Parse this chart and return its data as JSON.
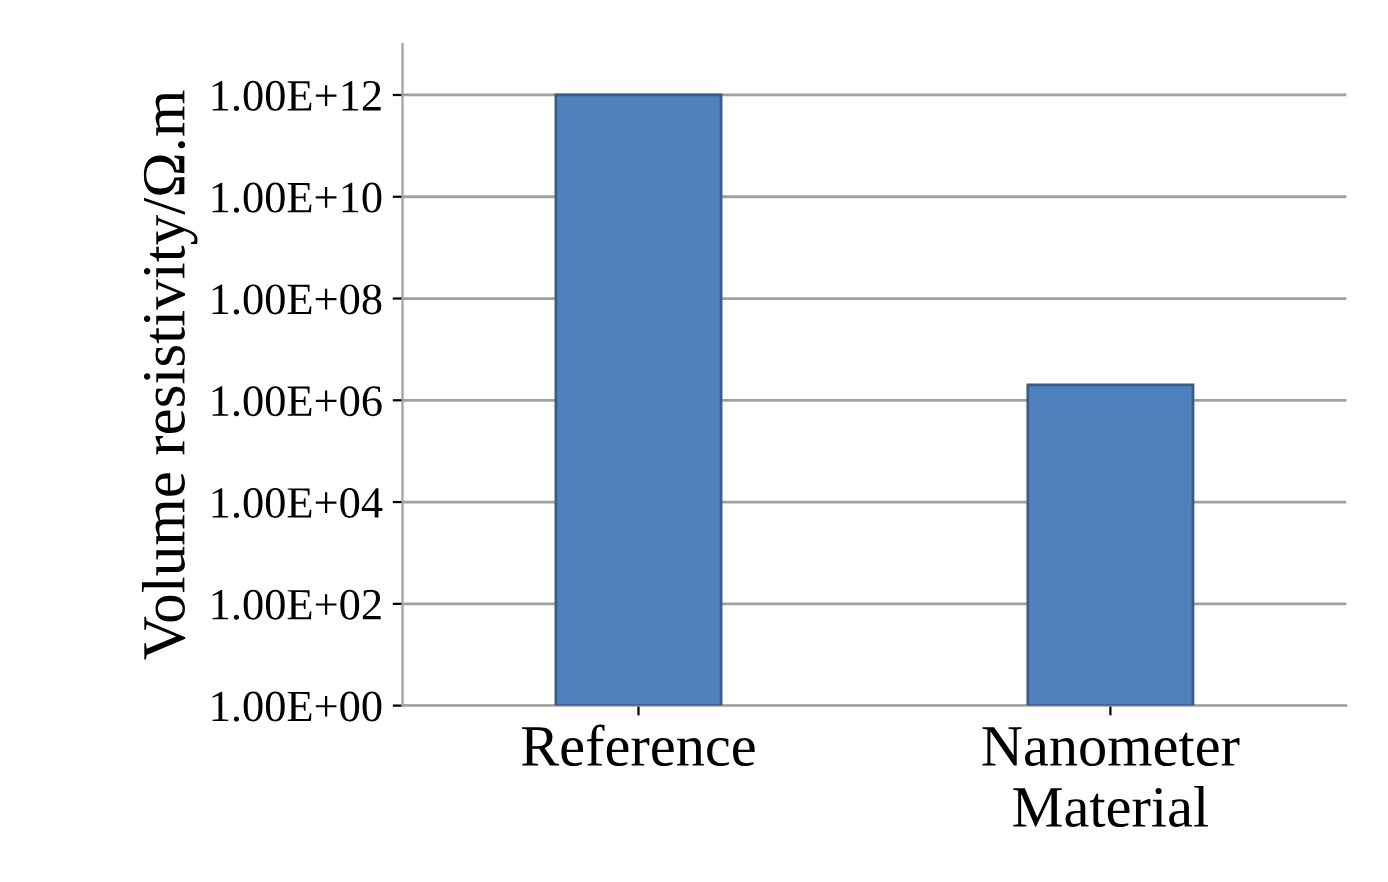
{
  "chart_data": {
    "type": "bar",
    "ylabel": "Volume resistivity/Ω.m",
    "categories": [
      "Reference",
      "Nanometer\nMaterial"
    ],
    "values": [
      1000000000000.0,
      2000000.0
    ],
    "color": "#4f81bd",
    "log": true,
    "ylim": [
      1,
      10000000000000.0
    ],
    "yticks": [
      {
        "value": 1,
        "label": "1.00E+00"
      },
      {
        "value": 100,
        "label": "1.00E+02"
      },
      {
        "value": 10000,
        "label": "1.00E+04"
      },
      {
        "value": 1000000,
        "label": "1.00E+06"
      },
      {
        "value": 100000000,
        "label": "1.00E+08"
      },
      {
        "value": 10000000000,
        "label": "1.00E+10"
      },
      {
        "value": 1000000000000,
        "label": "1.00E+12"
      }
    ],
    "grid": "y"
  }
}
